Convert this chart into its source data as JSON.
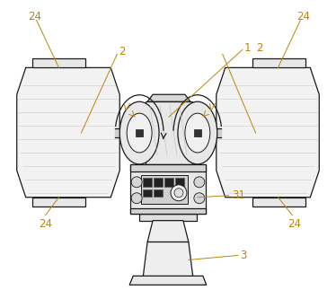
{
  "background_color": "#ffffff",
  "line_color": "#1a1a1a",
  "label_color": "#b8860b",
  "fig_width": 3.74,
  "fig_height": 3.23,
  "dpi": 100
}
